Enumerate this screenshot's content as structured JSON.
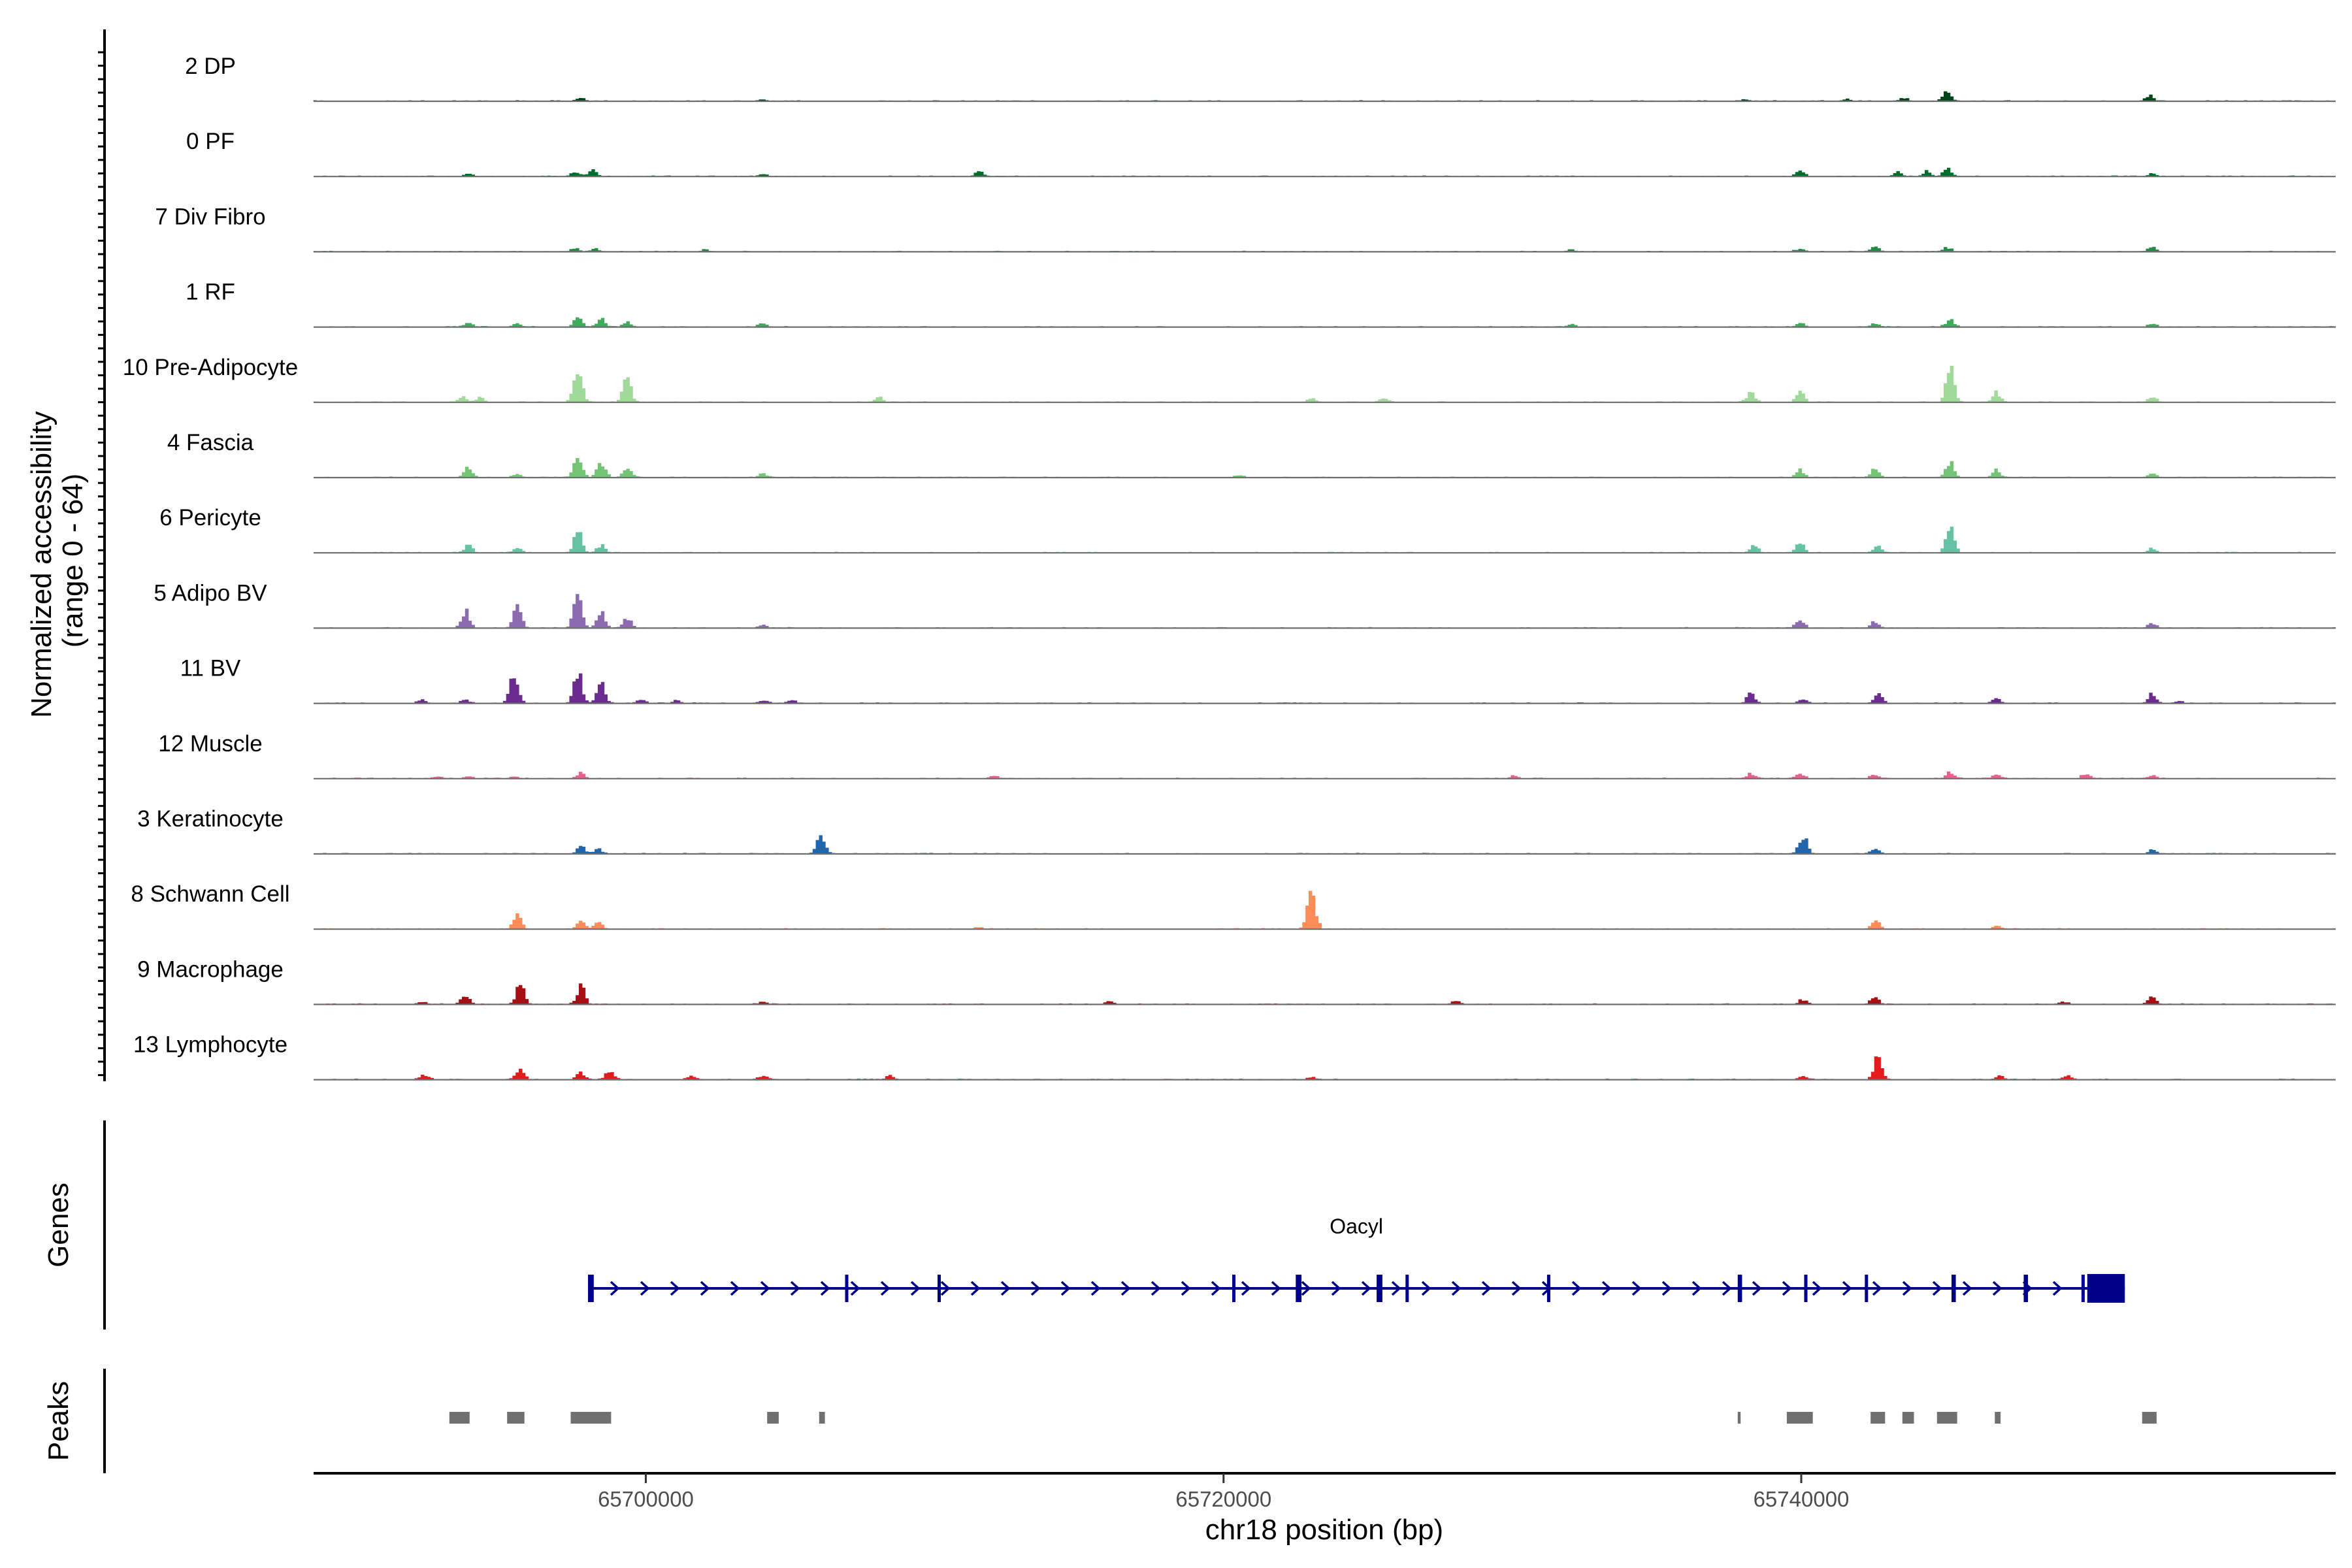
{
  "chart_data": {
    "type": "area",
    "region": "chr18",
    "xlim": [
      65688500,
      65758500
    ],
    "xlabel": "chr18 position (bp)",
    "ylabel_lines": [
      "Normalized accessibility",
      "(range 0 - 64)"
    ],
    "yrange": [
      0,
      64
    ],
    "x_ticks": [
      65700000,
      65720000,
      65740000
    ],
    "x_tick_labels": [
      "65700000",
      "65720000",
      "65740000"
    ],
    "tracks": [
      {
        "name": "2 DP",
        "color": "#00441b",
        "peaks": [
          [
            65697700,
            3
          ],
          [
            65704000,
            2
          ],
          [
            65738000,
            2
          ],
          [
            65741500,
            2
          ],
          [
            65743500,
            3
          ],
          [
            65745000,
            10
          ],
          [
            65752000,
            6
          ]
        ]
      },
      {
        "name": "0 PF",
        "color": "#006d2c",
        "peaks": [
          [
            65693800,
            3
          ],
          [
            65697500,
            5
          ],
          [
            65698100,
            7
          ],
          [
            65704000,
            2
          ],
          [
            65711500,
            5
          ],
          [
            65739900,
            6
          ],
          [
            65743300,
            4
          ],
          [
            65744300,
            5
          ],
          [
            65745000,
            8
          ],
          [
            65752100,
            3
          ]
        ]
      },
      {
        "name": "7 Div Fibro",
        "color": "#238b45",
        "peaks": [
          [
            65697500,
            3
          ],
          [
            65698200,
            3
          ],
          [
            65702000,
            2
          ],
          [
            65732000,
            2
          ],
          [
            65739900,
            3
          ],
          [
            65742500,
            6
          ],
          [
            65745000,
            4
          ],
          [
            65752100,
            4
          ]
        ]
      },
      {
        "name": "1 RF",
        "color": "#41ab5d",
        "peaks": [
          [
            65693800,
            5
          ],
          [
            65695500,
            4
          ],
          [
            65697600,
            10
          ],
          [
            65698400,
            9
          ],
          [
            65699300,
            5
          ],
          [
            65704000,
            4
          ],
          [
            65732000,
            3
          ],
          [
            65739900,
            4
          ],
          [
            65742500,
            4
          ],
          [
            65745100,
            8
          ],
          [
            65752100,
            4
          ]
        ]
      },
      {
        "name": "10 Pre-Adipocyte",
        "color": "#a1d99b",
        "peaks": [
          [
            65693600,
            7
          ],
          [
            65694200,
            5
          ],
          [
            65697600,
            36
          ],
          [
            65699300,
            24
          ],
          [
            65708000,
            5
          ],
          [
            65723000,
            4
          ],
          [
            65725500,
            5
          ],
          [
            65738200,
            10
          ],
          [
            65739900,
            11
          ],
          [
            65745100,
            36
          ],
          [
            65746700,
            10
          ],
          [
            65752100,
            6
          ]
        ]
      },
      {
        "name": "4 Fascia",
        "color": "#74c476",
        "peaks": [
          [
            65693800,
            11
          ],
          [
            65695500,
            4
          ],
          [
            65697600,
            22
          ],
          [
            65698400,
            17
          ],
          [
            65699300,
            10
          ],
          [
            65704000,
            4
          ],
          [
            65720500,
            3
          ],
          [
            65739900,
            8
          ],
          [
            65742500,
            10
          ],
          [
            65745100,
            16
          ],
          [
            65746700,
            8
          ],
          [
            65752100,
            4
          ]
        ]
      },
      {
        "name": "6 Pericyte",
        "color": "#66c2a4",
        "peaks": [
          [
            65693800,
            8
          ],
          [
            65695500,
            6
          ],
          [
            65697600,
            23
          ],
          [
            65698400,
            8
          ],
          [
            65738300,
            8
          ],
          [
            65739900,
            10
          ],
          [
            65742600,
            8
          ],
          [
            65745100,
            31
          ],
          [
            65752100,
            5
          ]
        ]
      },
      {
        "name": "5 Adipo BV",
        "color": "#8c6bb1",
        "peaks": [
          [
            65693700,
            18
          ],
          [
            65695500,
            24
          ],
          [
            65697600,
            37
          ],
          [
            65698400,
            18
          ],
          [
            65699300,
            10
          ],
          [
            65704000,
            3
          ],
          [
            65739900,
            8
          ],
          [
            65742500,
            7
          ],
          [
            65752100,
            5
          ]
        ]
      },
      {
        "name": "11 BV",
        "color": "#6a2c8e",
        "peaks": [
          [
            65692200,
            4
          ],
          [
            65693700,
            4
          ],
          [
            65695400,
            35
          ],
          [
            65697600,
            34
          ],
          [
            65698400,
            20
          ],
          [
            65699800,
            4
          ],
          [
            65701000,
            3
          ],
          [
            65704000,
            3
          ],
          [
            65705000,
            3
          ],
          [
            65738200,
            10
          ],
          [
            65740000,
            4
          ],
          [
            65742600,
            10
          ],
          [
            65746700,
            5
          ],
          [
            65752100,
            10
          ],
          [
            65753000,
            2
          ]
        ]
      },
      {
        "name": "12 Muscle",
        "color": "#e7608f",
        "peaks": [
          [
            65692800,
            2
          ],
          [
            65693800,
            3
          ],
          [
            65695400,
            2
          ],
          [
            65697700,
            6
          ],
          [
            65712000,
            3
          ],
          [
            65730000,
            3
          ],
          [
            65738200,
            5
          ],
          [
            65739900,
            5
          ],
          [
            65742500,
            4
          ],
          [
            65745100,
            6
          ],
          [
            65746700,
            4
          ],
          [
            65749800,
            5
          ],
          [
            65752100,
            4
          ]
        ]
      },
      {
        "name": "3 Keratinocyte",
        "color": "#2166ac",
        "peaks": [
          [
            65697700,
            8
          ],
          [
            65698300,
            5
          ],
          [
            65706000,
            20
          ],
          [
            65740000,
            20
          ],
          [
            65742500,
            5
          ],
          [
            65752100,
            4
          ]
        ]
      },
      {
        "name": "8 Schwann Cell",
        "color": "#fc8d59",
        "peaks": [
          [
            65695500,
            15
          ],
          [
            65697700,
            10
          ],
          [
            65698300,
            7
          ],
          [
            65711500,
            2
          ],
          [
            65723000,
            41
          ],
          [
            65742500,
            10
          ],
          [
            65746700,
            3
          ]
        ]
      },
      {
        "name": "9 Macrophage",
        "color": "#a50f15",
        "peaks": [
          [
            65692200,
            3
          ],
          [
            65693700,
            11
          ],
          [
            65695600,
            21
          ],
          [
            65697700,
            19
          ],
          [
            65704000,
            3
          ],
          [
            65716000,
            3
          ],
          [
            65728000,
            3
          ],
          [
            65740000,
            5
          ],
          [
            65742500,
            8
          ],
          [
            65749000,
            3
          ],
          [
            65752100,
            7
          ]
        ]
      },
      {
        "name": "13 Lymphocyte",
        "color": "#e41a1c",
        "peaks": [
          [
            65692300,
            5
          ],
          [
            65695600,
            12
          ],
          [
            65697700,
            7
          ],
          [
            65698700,
            9
          ],
          [
            65701500,
            4
          ],
          [
            65704000,
            4
          ],
          [
            65708400,
            4
          ],
          [
            65723000,
            3
          ],
          [
            65740000,
            4
          ],
          [
            65742600,
            23
          ],
          [
            65746800,
            4
          ],
          [
            65749200,
            4
          ]
        ]
      }
    ],
    "genes_title": "Genes",
    "gene": {
      "name": "Oacyl",
      "color": "#00008b",
      "start": 65698000,
      "end": 65751200,
      "strand": "+",
      "exons": [
        [
          65698000,
          65698200
        ],
        [
          65706900,
          65707000
        ],
        [
          65710100,
          65710150
        ],
        [
          65720300,
          65720400
        ],
        [
          65722500,
          65722700
        ],
        [
          65725300,
          65725500
        ],
        [
          65726300,
          65726400
        ],
        [
          65731200,
          65731300
        ],
        [
          65737800,
          65737950
        ],
        [
          65740100,
          65740200
        ],
        [
          65742200,
          65742300
        ],
        [
          65745200,
          65745350
        ],
        [
          65747700,
          65747850
        ],
        [
          65749700,
          65749800
        ],
        [
          65749900,
          65751200
        ]
      ]
    },
    "peaks_title": "Peaks",
    "peak_color": "#707070",
    "peak_regions": [
      [
        65693200,
        65693900
      ],
      [
        65695200,
        65695800
      ],
      [
        65697400,
        65698800
      ],
      [
        65704200,
        65704600
      ],
      [
        65706000,
        65706200
      ],
      [
        65737800,
        65737900
      ],
      [
        65739500,
        65740400
      ],
      [
        65742400,
        65742900
      ],
      [
        65743500,
        65743900
      ],
      [
        65744700,
        65745400
      ],
      [
        65746700,
        65746900
      ],
      [
        65751800,
        65752300
      ]
    ]
  }
}
